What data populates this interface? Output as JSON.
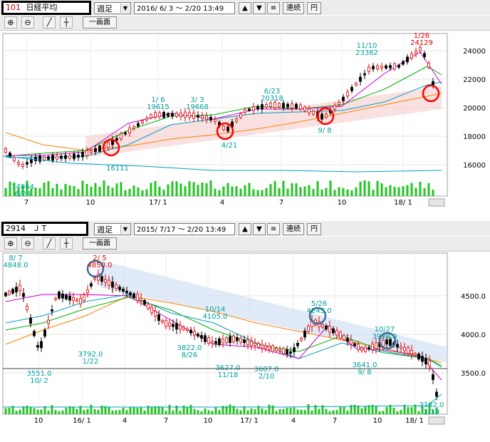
{
  "colors": {
    "up": "#e00000",
    "down": "#000000",
    "volume": "#22c522",
    "ma_short": "#d000d0",
    "ma_mid": "#00b000",
    "ma_long": "#ff8000",
    "ma_blue": "#00a0c0",
    "label_up": "#e00000",
    "label_cyan": "#00a0a0",
    "highlight_red": "#ff0000",
    "highlight_blue": "#3c6e9c"
  },
  "panel1": {
    "code": "101",
    "name": "日経平均",
    "period": "週足",
    "range": "2016/ 6/ 3 〜  2/20 13:49",
    "link_btn": "連続",
    "yen_btn": "円",
    "one_screen": "一画面",
    "icons": [
      "zoom-in-icon",
      "zoom-out-icon",
      "trendline-icon",
      "crosshair-icon"
    ],
    "y_ticks": [
      "24000",
      "22000",
      "20000",
      "18000",
      "16000"
    ],
    "x_ticks": [
      "7",
      "10",
      "17/ 1",
      "4",
      "7",
      "10",
      "18/ 1"
    ],
    "annotations": [
      {
        "a": "1/ 6",
        "b": "19615"
      },
      {
        "a": "3/ 3",
        "b": "19668"
      },
      {
        "a": "6/23",
        "b": "20318"
      },
      {
        "a": "11/10",
        "b": "23382"
      },
      {
        "a": "1/26",
        "b": "24129"
      },
      {
        "a": "4/21",
        "b": ""
      },
      {
        "a": "9/ 8",
        "b": ""
      },
      {
        "a": "16111",
        "b": ""
      },
      {
        "a": "14864",
        "b": "6/24"
      }
    ]
  },
  "panel2": {
    "code": "2914",
    "name": "ＪＴ",
    "period": "週足",
    "range": "2015/ 7/17 〜  2/20 13:49",
    "link_btn": "連続",
    "yen_btn": "円",
    "one_screen": "一画面",
    "icons": [
      "zoom-in-icon",
      "zoom-out-icon",
      "trendline-icon",
      "crosshair-icon"
    ],
    "y_ticks": [
      "4500.0",
      "4000.0",
      "3500.0"
    ],
    "x_ticks": [
      "10",
      "16/ 1",
      "4",
      "7",
      "10",
      "17/ 1",
      "4",
      "7",
      "10",
      "18/ 1"
    ],
    "annotations": [
      {
        "a": "8/ 7",
        "b": "4848.0"
      },
      {
        "a": "2/ 5",
        "b": "4850.0"
      },
      {
        "a": "10/14",
        "b": "4105.0"
      },
      {
        "a": "5/26",
        "b": "4243.0"
      },
      {
        "a": "10/27",
        "b": "3939.0"
      },
      {
        "a": "3792.0",
        "b": "1/22"
      },
      {
        "a": "3822.0",
        "b": "8/26"
      },
      {
        "a": "3627.0",
        "b": "11/18"
      },
      {
        "a": "3607.0",
        "b": "2/10"
      },
      {
        "a": "3641.0",
        "b": "9/ 8"
      },
      {
        "a": "3551.0",
        "b": "10/ 2"
      },
      {
        "a": "3182.0",
        "b": "2/19"
      }
    ]
  }
}
